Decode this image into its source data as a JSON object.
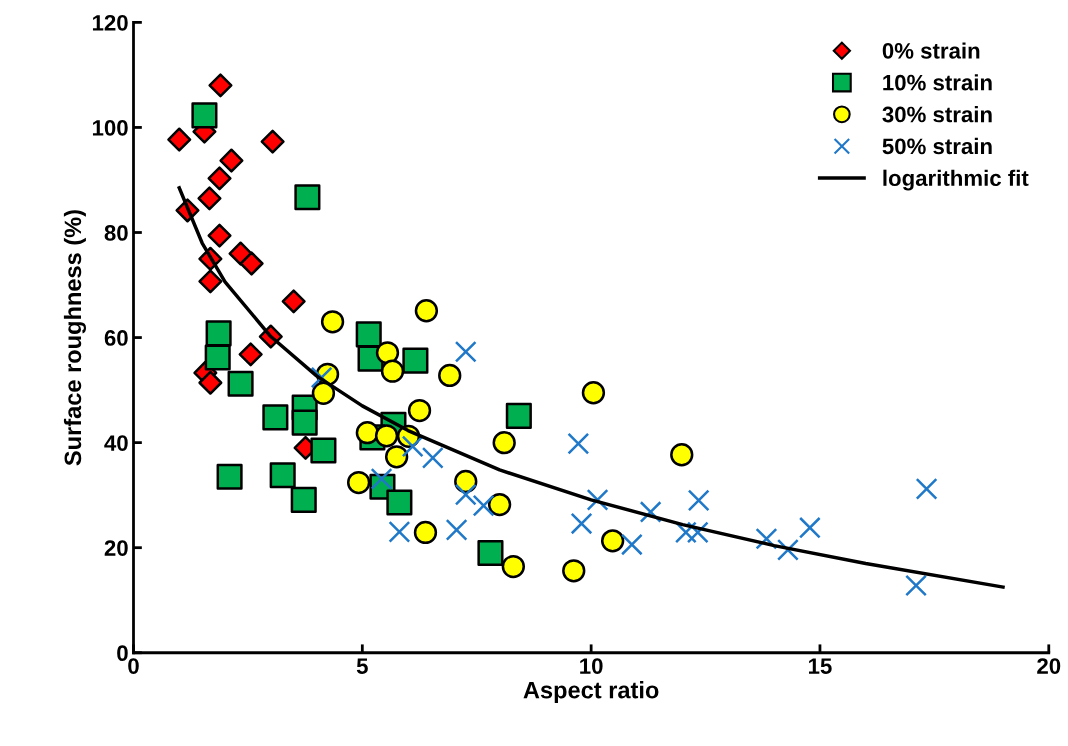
{
  "chart_data": {
    "type": "scatter",
    "xlabel": "Aspect ratio",
    "ylabel": "Surface roughness (%)",
    "xlim": [
      0,
      20
    ],
    "xticks": [
      0,
      5,
      10,
      15,
      20
    ],
    "ylim": [
      0,
      120
    ],
    "yticks": [
      0,
      20,
      40,
      60,
      80,
      100,
      120
    ],
    "grid": false,
    "legend": "top right",
    "series": [
      {
        "name": "0% strain",
        "color": "#ff0000",
        "marker": "diamond",
        "x": [
          1.9,
          1.55,
          1.0,
          3.04,
          2.14,
          1.88,
          1.66,
          1.18,
          1.88,
          1.68,
          2.34,
          2.58,
          1.68,
          3.5,
          3.0,
          2.56,
          1.57,
          1.68,
          3.76
        ],
        "values": [
          108.0,
          99.2,
          97.7,
          97.3,
          93.7,
          90.3,
          86.5,
          84.2,
          79.4,
          75.0,
          76.0,
          74.1,
          70.7,
          66.9,
          60.2,
          56.8,
          53.3,
          51.4,
          39.0
        ]
      },
      {
        "name": "10% strain",
        "color": "#00b050",
        "marker": "square",
        "x": [
          1.55,
          3.8,
          1.86,
          1.84,
          2.34,
          3.1,
          3.74,
          3.74,
          4.15,
          2.1,
          3.26,
          3.72,
          5.14,
          5.18,
          6.16,
          8.42,
          5.68,
          5.22,
          5.44,
          5.81,
          7.8
        ],
        "values": [
          102.3,
          86.7,
          60.8,
          56.2,
          51.2,
          44.8,
          46.7,
          43.8,
          38.5,
          33.5,
          33.8,
          29.1,
          60.6,
          56.0,
          55.6,
          45.1,
          43.4,
          41.0,
          31.6,
          28.6,
          19.0
        ]
      },
      {
        "name": "30% strain",
        "color": "#ffff00",
        "marker": "circle",
        "x": [
          6.4,
          4.35,
          5.55,
          5.66,
          6.91,
          4.24,
          4.15,
          6.25,
          5.11,
          5.53,
          6.01,
          5.75,
          8.1,
          4.92,
          7.26,
          8.0,
          6.38,
          8.3,
          10.05,
          9.62,
          10.47,
          11.98
        ],
        "values": [
          65.1,
          63.0,
          57.1,
          53.6,
          52.8,
          53.0,
          49.4,
          46.1,
          41.9,
          41.3,
          41.2,
          37.3,
          40.0,
          32.4,
          32.6,
          28.2,
          22.9,
          16.4,
          49.5,
          15.6,
          21.3,
          37.7
        ]
      },
      {
        "name": "50% strain",
        "color": "#1f78c8",
        "marker": "cross",
        "x": [
          7.26,
          4.11,
          6.1,
          6.54,
          5.42,
          5.81,
          7.06,
          7.26,
          7.65,
          9.72,
          10.14,
          9.79,
          10.89,
          11.3,
          12.35,
          12.07,
          12.33,
          13.83,
          14.3,
          14.78,
          17.33,
          17.1
        ],
        "values": [
          57.3,
          52.4,
          39.3,
          37.1,
          33.1,
          23.0,
          23.4,
          30.1,
          28.0,
          39.8,
          29.1,
          24.6,
          20.6,
          26.8,
          29.0,
          22.9,
          22.9,
          21.7,
          19.6,
          23.8,
          31.2,
          12.8
        ]
      },
      {
        "name": "logarithmic fit",
        "type": "line",
        "color": "#000000",
        "marker": "none",
        "line_style": "solid",
        "x": [
          1,
          1.5,
          2,
          3,
          4,
          5,
          6,
          8,
          10,
          12,
          14,
          16,
          19
        ],
        "values": [
          88.5,
          78.0,
          70.6,
          60.2,
          52.7,
          47.0,
          42.3,
          34.8,
          29.1,
          24.4,
          20.4,
          17.0,
          12.5
        ]
      }
    ]
  }
}
